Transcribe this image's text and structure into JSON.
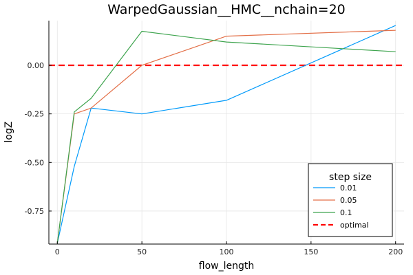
{
  "chart_data": {
    "type": "line",
    "title": "WarpedGaussian__HMC__nchain=20",
    "xlabel": "flow_length",
    "ylabel": "logZ",
    "xlim": [
      -5,
      205
    ],
    "ylim": [
      -0.92,
      0.23
    ],
    "xticks": [
      0,
      50,
      100,
      150,
      200
    ],
    "xtick_labels": [
      "0",
      "50",
      "100",
      "150",
      "200"
    ],
    "yticks": [
      -0.75,
      -0.5,
      -0.25,
      0.0
    ],
    "ytick_labels": [
      "-0.75",
      "-0.50",
      "-0.25",
      "0.00"
    ],
    "grid": true,
    "legend": {
      "title": "step size",
      "position": "bottom-right"
    },
    "x": [
      0,
      10,
      20,
      50,
      100,
      200
    ],
    "series": [
      {
        "name": "0.01",
        "color": "#009AFA",
        "values": [
          -0.915,
          -0.52,
          -0.22,
          -0.25,
          -0.18,
          0.205
        ]
      },
      {
        "name": "0.05",
        "color": "#E36F47",
        "values": [
          -0.915,
          -0.25,
          -0.22,
          0.0,
          0.15,
          0.18
        ]
      },
      {
        "name": "0.1",
        "color": "#3EA44E",
        "values": [
          -0.915,
          -0.24,
          -0.17,
          0.175,
          0.12,
          0.07
        ]
      }
    ],
    "reference_line": {
      "name": "optimal",
      "y": 0.0,
      "color": "#FF0000",
      "style": "dashed"
    }
  }
}
